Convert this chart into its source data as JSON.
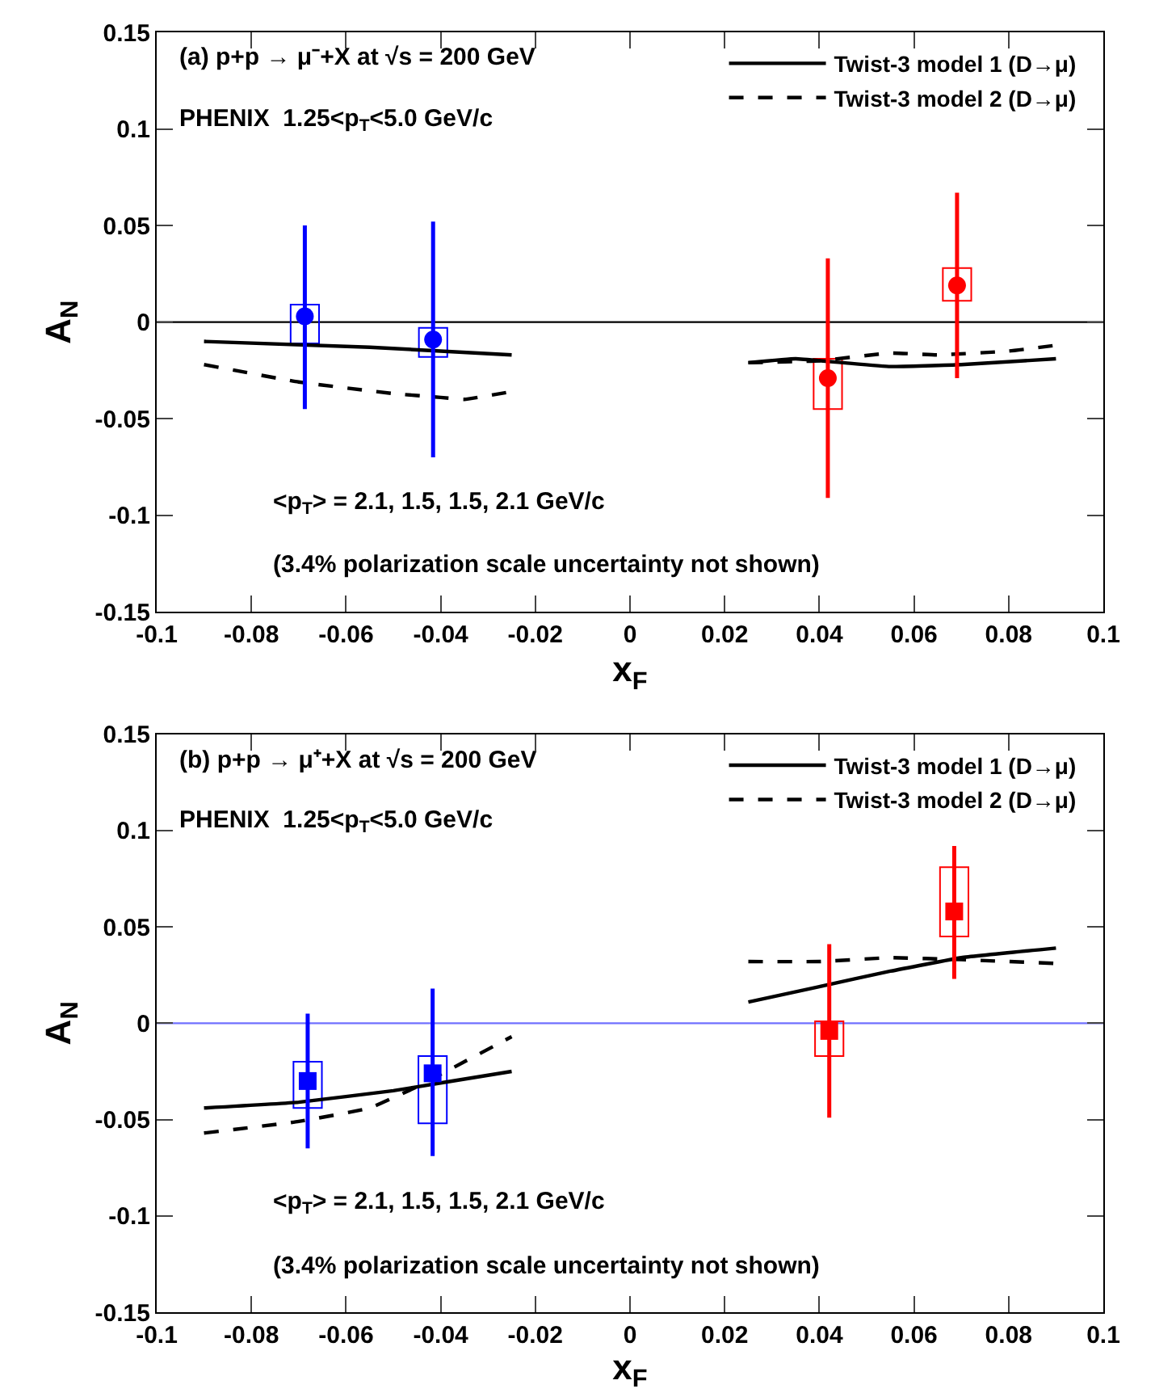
{
  "chart_data": [
    {
      "type": "scatter",
      "xlabel": "x$_{F}$",
      "ylabel": "A$_{N}$",
      "xlim": [
        -0.1,
        0.1
      ],
      "xticks": [
        -0.1,
        -0.08,
        -0.06,
        -0.04,
        -0.02,
        0,
        0.02,
        0.04,
        0.06,
        0.08,
        0.1
      ],
      "ylim": [
        -0.15,
        0.15
      ],
      "yticks": [
        -0.15,
        -0.1,
        -0.05,
        0,
        0.05,
        0.1,
        0.15
      ],
      "grid": false,
      "legend": "top right",
      "annotations": [
        "(a) p+p → μ⁻+X at √s = 200 GeV",
        "PHENIX  1.25<p$_{T}$<5.0 GeV/c",
        "<p$_{T}$> = 2.1, 1.5, 1.5, 2.1 GeV/c",
        "(3.4% polarization scale uncertainty not shown)"
      ],
      "ref_lines": [
        {
          "axis": "y",
          "value": 0,
          "color": "#000000"
        }
      ],
      "series": [
        {
          "type": "bar",
          "color": "#0000ff",
          "x": [
            -0.0687,
            -0.0416
          ],
          "base": [
            -0.011,
            -0.018
          ],
          "values": [
            0.02,
            0.015
          ]
        },
        {
          "type": "bar",
          "color": "#ff0000",
          "x": [
            0.0418,
            0.0691
          ],
          "base": [
            -0.045,
            0.011
          ],
          "values": [
            0.026,
            0.017
          ]
        },
        {
          "type": "line",
          "name": "Twist-3 model 1 (D→μ)",
          "color": "#000000",
          "line_style": "solid",
          "marker": "none",
          "x": [
            -0.09,
            -0.055,
            -0.025,
            0,
            0.025,
            0.035,
            0.045,
            0.055,
            0.07,
            0.09
          ],
          "values": [
            -0.01,
            -0.013,
            -0.017,
            null,
            -0.021,
            -0.019,
            -0.021,
            -0.023,
            -0.022,
            -0.019
          ]
        },
        {
          "type": "line",
          "name": "Twist-3 model 2 (D→μ)",
          "color": "#000000",
          "line_style": "dashed",
          "marker": "none",
          "x": [
            -0.09,
            -0.07,
            -0.05,
            -0.04,
            -0.035,
            -0.025,
            0,
            0.025,
            0.04,
            0.055,
            0.065,
            0.08,
            0.09
          ],
          "values": [
            -0.022,
            -0.031,
            -0.037,
            -0.039,
            -0.04,
            -0.036,
            null,
            -0.021,
            -0.02,
            -0.016,
            -0.017,
            -0.015,
            -0.012
          ]
        },
        {
          "color": "#0000ff",
          "marker": "circle",
          "x": [
            -0.0687,
            -0.0416
          ],
          "values": [
            0.003,
            -0.009
          ],
          "errors": [
            [
              -0.045,
              0.05
            ],
            [
              -0.07,
              0.052
            ]
          ]
        },
        {
          "color": "#ff0000",
          "marker": "circle",
          "x": [
            0.0418,
            0.0691
          ],
          "values": [
            -0.029,
            0.019
          ],
          "errors": [
            [
              -0.091,
              0.033
            ],
            [
              -0.029,
              0.067
            ]
          ]
        }
      ]
    },
    {
      "type": "scatter",
      "xlabel": "x$_{F}$",
      "ylabel": "A$_{N}$",
      "xlim": [
        -0.1,
        0.1
      ],
      "xticks": [
        -0.1,
        -0.08,
        -0.06,
        -0.04,
        -0.02,
        0,
        0.02,
        0.04,
        0.06,
        0.08,
        0.1
      ],
      "ylim": [
        -0.15,
        0.15
      ],
      "yticks": [
        -0.15,
        -0.1,
        -0.05,
        0,
        0.05,
        0.1,
        0.15
      ],
      "grid": false,
      "legend": "top right",
      "annotations": [
        "(b) p+p → μ⁺+X at √s = 200 GeV",
        "PHENIX  1.25<p$_{T}$<5.0 GeV/c",
        "<p$_{T}$> = 2.1, 1.5, 1.5, 2.1 GeV/c",
        "(3.4% polarization scale uncertainty not shown)"
      ],
      "ref_lines": [
        {
          "axis": "y",
          "value": 0,
          "color": "#7070ff"
        }
      ],
      "series": [
        {
          "type": "bar",
          "color": "#0000ff",
          "x": [
            -0.0681,
            -0.0417
          ],
          "base": [
            -0.044,
            -0.052
          ],
          "values": [
            0.024,
            0.035
          ]
        },
        {
          "type": "bar",
          "color": "#ff0000",
          "x": [
            0.0421,
            0.0685
          ],
          "base": [
            -0.017,
            0.045
          ],
          "values": [
            0.018,
            0.036
          ]
        },
        {
          "type": "line",
          "name": "Twist-3 model 1 (D→μ)",
          "color": "#000000",
          "line_style": "solid",
          "marker": "none",
          "x": [
            -0.09,
            -0.07,
            -0.05,
            -0.04,
            -0.025,
            0,
            0.025,
            0.04,
            0.055,
            0.07,
            0.09
          ],
          "values": [
            -0.044,
            -0.041,
            -0.035,
            -0.031,
            -0.025,
            null,
            0.011,
            0.019,
            0.027,
            0.034,
            0.039
          ]
        },
        {
          "type": "line",
          "name": "Twist-3 model 2 (D→μ)",
          "color": "#000000",
          "line_style": "dashed",
          "marker": "none",
          "x": [
            -0.09,
            -0.07,
            -0.055,
            -0.045,
            -0.035,
            -0.025,
            0,
            0.025,
            0.04,
            0.055,
            0.07,
            0.09
          ],
          "values": [
            -0.057,
            -0.051,
            -0.044,
            -0.033,
            -0.02,
            -0.007,
            null,
            0.032,
            0.032,
            0.034,
            0.033,
            0.031
          ]
        },
        {
          "color": "#0000ff",
          "marker": "square",
          "x": [
            -0.0681,
            -0.0417
          ],
          "values": [
            -0.03,
            -0.026
          ],
          "errors": [
            [
              -0.065,
              0.005
            ],
            [
              -0.069,
              0.018
            ]
          ]
        },
        {
          "color": "#ff0000",
          "marker": "square",
          "x": [
            0.0421,
            0.0685
          ],
          "values": [
            -0.004,
            0.058
          ],
          "errors": [
            [
              -0.049,
              0.041
            ],
            [
              0.023,
              0.092
            ]
          ]
        }
      ]
    }
  ]
}
